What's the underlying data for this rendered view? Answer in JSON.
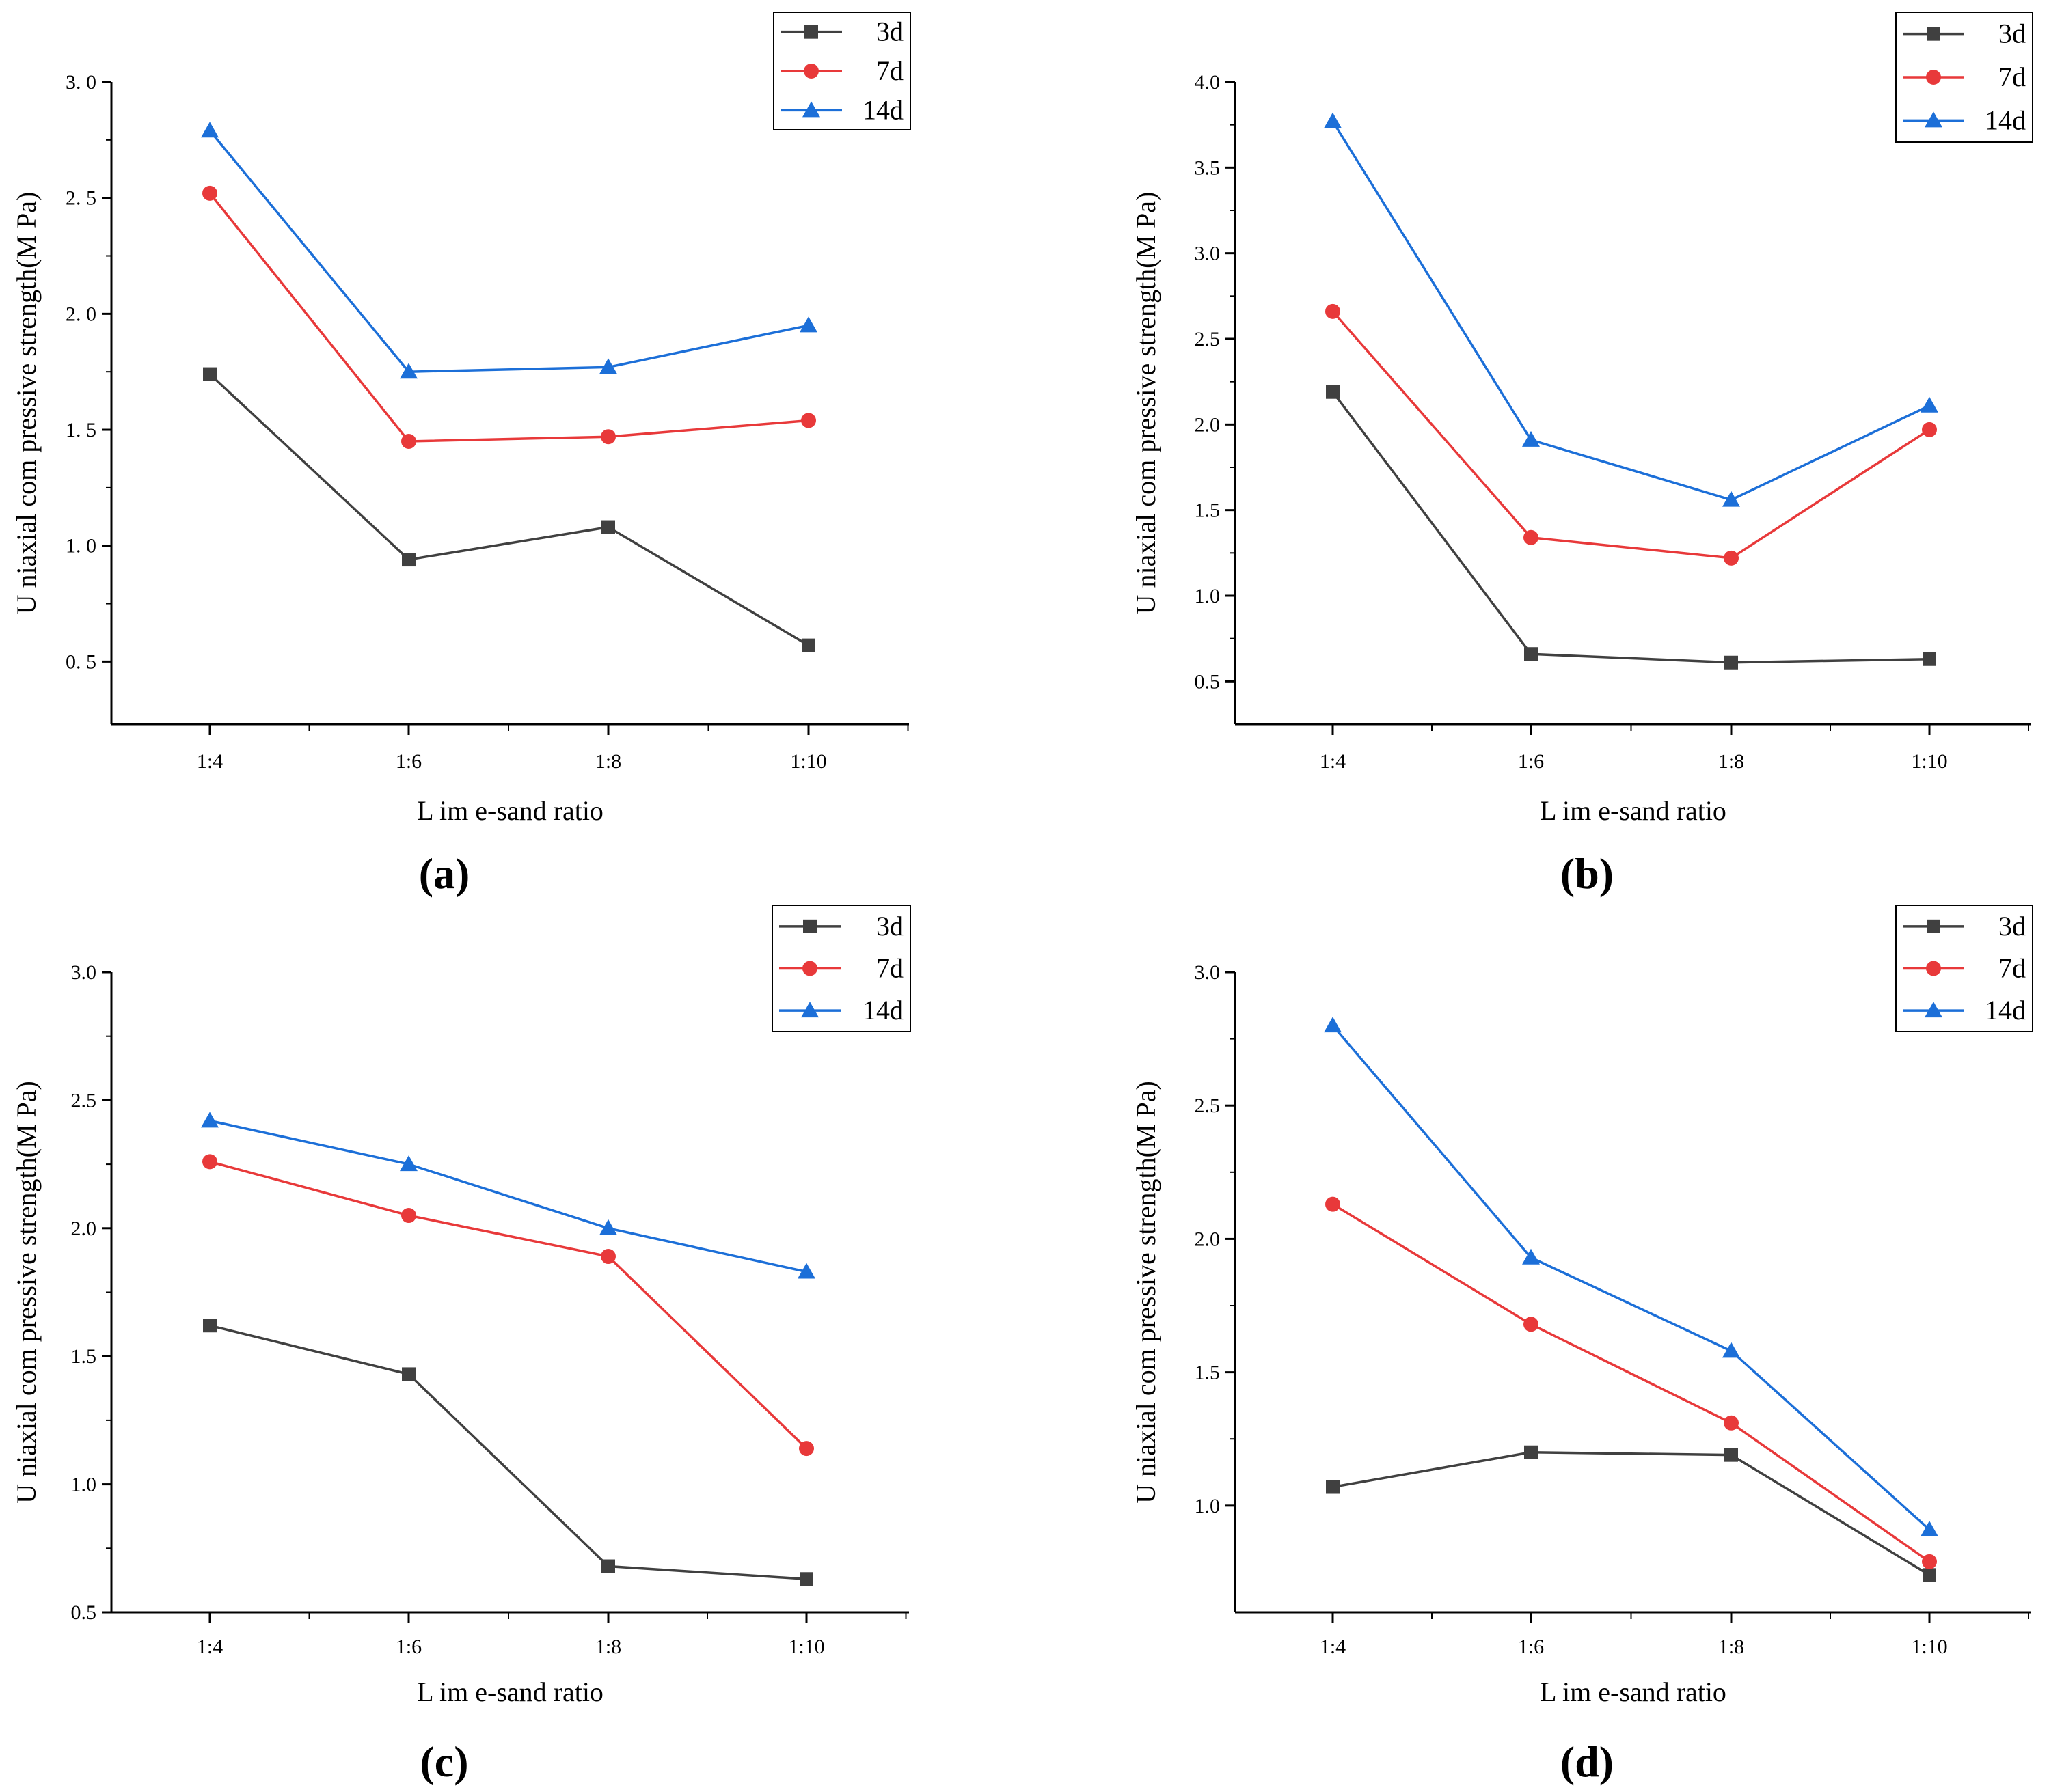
{
  "figure": {
    "panels": [
      "(a)",
      "(b)",
      "(c)",
      "(d)"
    ]
  },
  "chart_data": [
    {
      "type": "line",
      "panel_label": "(a)",
      "categories": [
        "1:4",
        "1:6",
        "1:8",
        "1:10"
      ],
      "xlabel": "L im e-sand ratio",
      "ylabel": "U niaxial com pressive strength(M Pa)",
      "ylim": [
        0.23,
        3.0
      ],
      "yticks": [
        0.5,
        1.0,
        1.5,
        2.0,
        2.5,
        3.0
      ],
      "ytick_labels": [
        "0. 5",
        "1. 0",
        "1. 5",
        "2. 0",
        "2. 5",
        "3. 0"
      ],
      "legend_position": "top-right",
      "series": [
        {
          "name": "3d",
          "color": "#404040",
          "marker": "square",
          "values": [
            1.74,
            0.94,
            1.08,
            0.57
          ]
        },
        {
          "name": "7d",
          "color": "#e8393a",
          "marker": "circle",
          "values": [
            2.52,
            1.45,
            1.47,
            1.54
          ]
        },
        {
          "name": "14d",
          "color": "#1c6fd8",
          "marker": "triangle",
          "values": [
            2.79,
            1.75,
            1.77,
            1.95
          ]
        }
      ]
    },
    {
      "type": "line",
      "panel_label": "(b)",
      "categories": [
        "1:4",
        "1:6",
        "1:8",
        "1:10"
      ],
      "xlabel": "L im e-sand ratio",
      "ylabel": "U niaxial com pressive strength(M Pa)",
      "ylim": [
        0.25,
        4.0
      ],
      "yticks": [
        0.5,
        1.0,
        1.5,
        2.0,
        2.5,
        3.0,
        3.5,
        4.0
      ],
      "ytick_labels": [
        "0.5",
        "1.0",
        "1.5",
        "2.0",
        "2.5",
        "3.0",
        "3.5",
        "4.0"
      ],
      "legend_position": "top-right",
      "series": [
        {
          "name": "3d",
          "color": "#404040",
          "marker": "square",
          "values": [
            2.19,
            0.66,
            0.61,
            0.63
          ]
        },
        {
          "name": "7d",
          "color": "#e8393a",
          "marker": "circle",
          "values": [
            2.66,
            1.34,
            1.22,
            1.97
          ]
        },
        {
          "name": "14d",
          "color": "#1c6fd8",
          "marker": "triangle",
          "values": [
            3.77,
            1.91,
            1.56,
            2.11
          ]
        }
      ]
    },
    {
      "type": "line",
      "panel_label": "(c)",
      "categories": [
        "1:4",
        "1:6",
        "1:8",
        "1:10"
      ],
      "xlabel": "L im e-sand ratio",
      "ylabel": "U niaxial com pressive strength(M Pa)",
      "ylim": [
        0.5,
        3.0
      ],
      "yticks": [
        0.5,
        1.0,
        1.5,
        2.0,
        2.5,
        3.0
      ],
      "ytick_labels": [
        "0.5",
        "1.0",
        "1.5",
        "2.0",
        "2.5",
        "3.0"
      ],
      "legend_position": "top-right",
      "series": [
        {
          "name": "3d",
          "color": "#404040",
          "marker": "square",
          "values": [
            1.62,
            1.43,
            0.68,
            0.63
          ]
        },
        {
          "name": "7d",
          "color": "#e8393a",
          "marker": "circle",
          "values": [
            2.26,
            2.05,
            1.89,
            1.14
          ]
        },
        {
          "name": "14d",
          "color": "#1c6fd8",
          "marker": "triangle",
          "values": [
            2.42,
            2.25,
            2.0,
            1.83
          ]
        }
      ]
    },
    {
      "type": "line",
      "panel_label": "(d)",
      "categories": [
        "1:4",
        "1:6",
        "1:8",
        "1:10"
      ],
      "xlabel": "L im e-sand ratio",
      "ylabel": "U niaxial com pressive strength(M Pa)",
      "ylim": [
        0.6,
        3.0
      ],
      "yticks": [
        1.0,
        1.5,
        2.0,
        2.5,
        3.0
      ],
      "ytick_labels": [
        "1.0",
        "1.5",
        "2.0",
        "2.5",
        "3.0"
      ],
      "legend_position": "top-right",
      "series": [
        {
          "name": "3d",
          "color": "#404040",
          "marker": "square",
          "values": [
            1.07,
            1.2,
            1.19,
            0.74
          ]
        },
        {
          "name": "7d",
          "color": "#e8393a",
          "marker": "circle",
          "values": [
            2.13,
            1.68,
            1.31,
            0.79
          ]
        },
        {
          "name": "14d",
          "color": "#1c6fd8",
          "marker": "triangle",
          "values": [
            2.8,
            1.93,
            1.58,
            0.91
          ]
        }
      ]
    }
  ]
}
